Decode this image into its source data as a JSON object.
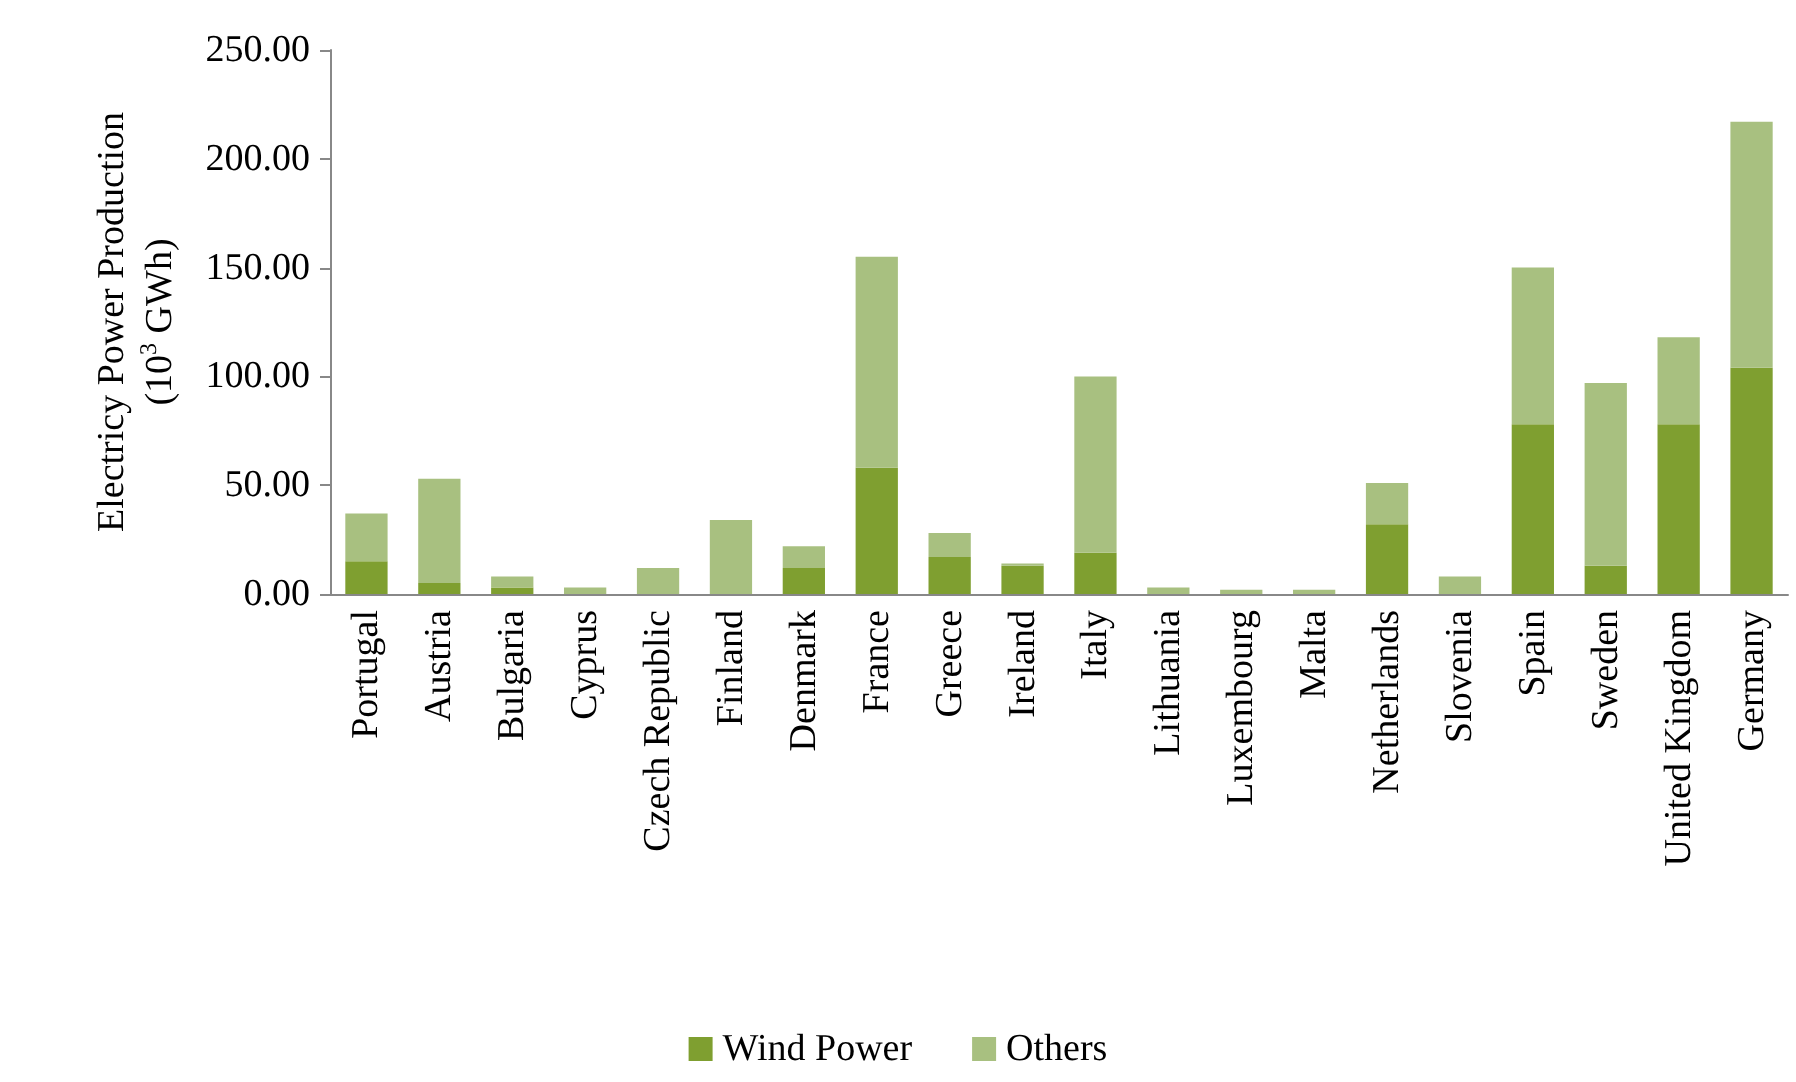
{
  "chart_data": {
    "type": "bar",
    "stacked": true,
    "ylabel": "Electricy Power Production\n(10$^{3}$ GWh)",
    "categories": [
      "Portugal",
      "Austria",
      "Bulgaria",
      "Cyprus",
      "Czech Republic",
      "Finland",
      "Denmark",
      "France",
      "Greece",
      "Ireland",
      "Italy",
      "Lithuania",
      "Luxembourg",
      "Malta",
      "Netherlands",
      "Slovenia",
      "Spain",
      "Sweden",
      "United Kingdom",
      "Germany"
    ],
    "series": [
      {
        "name": "Wind Power",
        "color": "#7f9f30",
        "values": [
          15,
          5,
          3,
          0,
          0,
          0,
          12,
          58,
          17,
          13,
          19,
          0,
          0,
          0,
          32,
          0,
          78,
          13,
          78,
          104
        ]
      },
      {
        "name": "Others",
        "color": "#a8c080",
        "values": [
          22,
          48,
          5,
          3,
          12,
          34,
          10,
          97,
          11,
          1,
          81,
          3,
          2,
          2,
          19,
          8,
          72,
          84,
          40,
          113
        ]
      }
    ],
    "ylim": [
      0,
      250
    ],
    "yticks": [
      {
        "value": 0,
        "label": "0.00"
      },
      {
        "value": 50,
        "label": "50.00"
      },
      {
        "value": 100,
        "label": "100.00"
      },
      {
        "value": 150,
        "label": "150.00"
      },
      {
        "value": 200,
        "label": "200.00"
      },
      {
        "value": 250,
        "label": "250.00"
      }
    ],
    "grid": false,
    "legend": "bottom"
  }
}
